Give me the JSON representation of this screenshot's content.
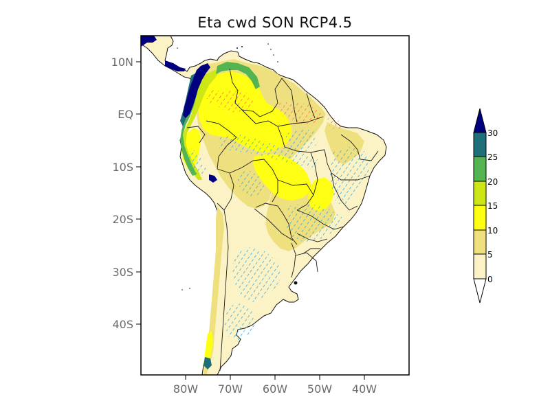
{
  "title": "Eta  cwd SON RCP4.5",
  "colors": {
    "background": "#ffffff",
    "ocean": "#ffffff",
    "frame": "#000000",
    "border": "#1a1a1a",
    "hatch_decrease": "#ff5a4e",
    "hatch_increase": "#2aa7e6"
  },
  "map": {
    "lon_range": [
      -90,
      -30
    ],
    "lat_range": [
      -50,
      15
    ],
    "lat_ticks": [
      {
        "value": 10,
        "label": "10N"
      },
      {
        "value": 0,
        "label": "EQ"
      },
      {
        "value": -10,
        "label": "10S"
      },
      {
        "value": -20,
        "label": "20S"
      },
      {
        "value": -30,
        "label": "30S"
      },
      {
        "value": -40,
        "label": "40S"
      }
    ],
    "lon_ticks": [
      {
        "value": -80,
        "label": "80W"
      },
      {
        "value": -70,
        "label": "70W"
      },
      {
        "value": -60,
        "label": "60W"
      },
      {
        "value": -50,
        "label": "50W"
      },
      {
        "value": -40,
        "label": "40W"
      }
    ]
  },
  "colorbar": {
    "levels": [
      "0",
      "5",
      "10",
      "15",
      "20",
      "25",
      "30"
    ],
    "colors": [
      "#fbf2c6",
      "#efe07f",
      "#ffff14",
      "#cde716",
      "#54b452",
      "#1f6f7a"
    ],
    "under_color": "#ffffff",
    "over_color": "#00007f"
  }
}
